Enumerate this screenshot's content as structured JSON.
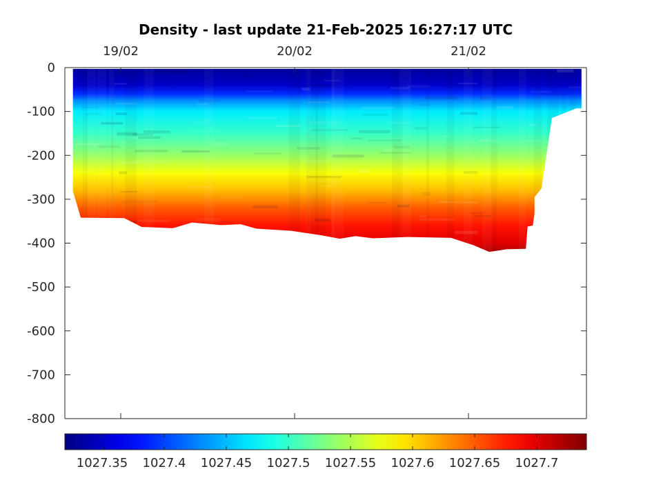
{
  "chart_data": {
    "type": "heatmap",
    "title": "Density - last update 21-Feb-2025 16:27:17 UTC",
    "xlabel": "",
    "ylabel": "",
    "x_axis": {
      "position": "top",
      "ticks": [
        {
          "label": "19/02",
          "value": 0
        },
        {
          "label": "20/02",
          "value": 1
        },
        {
          "label": "21/02",
          "value": 2
        }
      ],
      "xlim": [
        -0.365,
        2.7
      ]
    },
    "y_axis": {
      "ticks": [
        0,
        -100,
        -200,
        -300,
        -400,
        -500,
        -600,
        -700,
        -800
      ],
      "tick_labels": [
        "0",
        "-100",
        "-200",
        "-300",
        "-400",
        "-500",
        "-600",
        "-700",
        "-800"
      ],
      "ylim": [
        -800,
        0
      ]
    },
    "colormap": "jet",
    "colorbar": {
      "placement": "bottom",
      "clim": [
        1027.32,
        1027.74
      ],
      "ticks": [
        1027.35,
        1027.4,
        1027.45,
        1027.5,
        1027.55,
        1027.6,
        1027.65,
        1027.7
      ],
      "tick_labels": [
        "1027.35",
        "1027.4",
        "1027.45",
        "1027.5",
        "1027.55",
        "1027.6",
        "1027.65",
        "1027.7"
      ]
    },
    "data_coverage": {
      "x_range_days": [
        -0.275,
        2.65
      ],
      "top_depth": -3,
      "bottom_depth_profile": [
        {
          "x": -0.275,
          "depth": -282
        },
        {
          "x": -0.23,
          "depth": -342
        },
        {
          "x": 0.02,
          "depth": -343
        },
        {
          "x": 0.12,
          "depth": -363
        },
        {
          "x": 0.3,
          "depth": -366
        },
        {
          "x": 0.41,
          "depth": -353
        },
        {
          "x": 0.58,
          "depth": -359
        },
        {
          "x": 0.69,
          "depth": -357
        },
        {
          "x": 0.78,
          "depth": -367
        },
        {
          "x": 0.98,
          "depth": -372
        },
        {
          "x": 1.15,
          "depth": -382
        },
        {
          "x": 1.26,
          "depth": -390
        },
        {
          "x": 1.35,
          "depth": -384
        },
        {
          "x": 1.45,
          "depth": -389
        },
        {
          "x": 1.65,
          "depth": -386
        },
        {
          "x": 1.9,
          "depth": -388
        },
        {
          "x": 2.03,
          "depth": -405
        },
        {
          "x": 2.12,
          "depth": -420
        },
        {
          "x": 2.22,
          "depth": -414
        },
        {
          "x": 2.33,
          "depth": -413
        },
        {
          "x": 2.34,
          "depth": -362
        },
        {
          "x": 2.37,
          "depth": -360
        },
        {
          "x": 2.38,
          "depth": -332
        },
        {
          "x": 2.38,
          "depth": -295
        },
        {
          "x": 2.42,
          "depth": -275
        },
        {
          "x": 2.45,
          "depth": -195
        },
        {
          "x": 2.48,
          "depth": -115
        },
        {
          "x": 2.62,
          "depth": -93
        },
        {
          "x": 2.65,
          "depth": -93
        }
      ],
      "surface_right_edge": {
        "x": 2.65,
        "depth": -3
      }
    },
    "density_profile_by_depth": [
      {
        "depth": 0,
        "density": 1027.33
      },
      {
        "depth": -40,
        "density": 1027.35
      },
      {
        "depth": -60,
        "density": 1027.39
      },
      {
        "depth": -75,
        "density": 1027.43
      },
      {
        "depth": -100,
        "density": 1027.47
      },
      {
        "depth": -150,
        "density": 1027.5
      },
      {
        "depth": -200,
        "density": 1027.54
      },
      {
        "depth": -240,
        "density": 1027.58
      },
      {
        "depth": -280,
        "density": 1027.61
      },
      {
        "depth": -320,
        "density": 1027.65
      },
      {
        "depth": -360,
        "density": 1027.68
      },
      {
        "depth": -400,
        "density": 1027.7
      },
      {
        "depth": -420,
        "density": 1027.72
      }
    ]
  }
}
